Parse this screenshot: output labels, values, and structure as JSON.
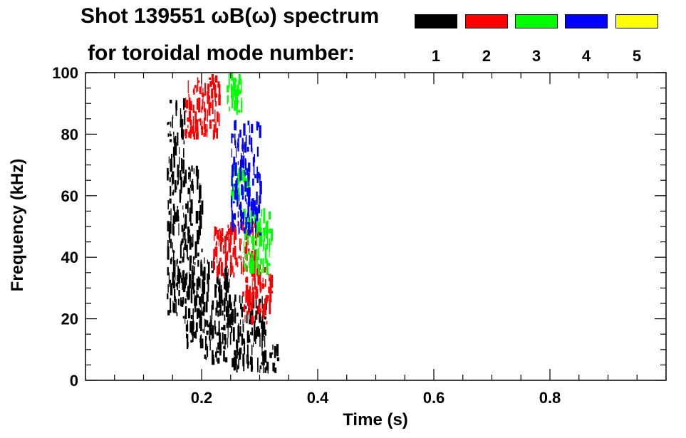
{
  "title": {
    "line1": "Shot 139551 ωB(ω) spectrum",
    "line2": "for toroidal mode number:"
  },
  "legend": [
    {
      "mode": "1",
      "color": "#000000"
    },
    {
      "mode": "2",
      "color": "#ff0000"
    },
    {
      "mode": "3",
      "color": "#00ff00"
    },
    {
      "mode": "4",
      "color": "#0000ff"
    },
    {
      "mode": "5",
      "color": "#ffff00"
    }
  ],
  "chart_data": {
    "type": "heatmap",
    "title": "Shot 139551 ωB(ω) spectrum",
    "xlabel": "Time (s)",
    "ylabel": "Frequency (kHz)",
    "xlim": [
      0.0,
      1.0
    ],
    "ylim": [
      0,
      100
    ],
    "xticks": [
      "0.2",
      "0.4",
      "0.6",
      "0.8"
    ],
    "yticks": [
      "0",
      "20",
      "40",
      "60",
      "80",
      "100"
    ],
    "series": [
      {
        "name": "1",
        "color": "#000000",
        "regions": [
          {
            "t": [
              0.14,
              0.17
            ],
            "f": [
              20,
              92
            ]
          },
          {
            "t": [
              0.17,
              0.2
            ],
            "f": [
              10,
              70
            ]
          },
          {
            "t": [
              0.2,
              0.25
            ],
            "f": [
              5,
              40
            ]
          },
          {
            "t": [
              0.25,
              0.31
            ],
            "f": [
              2,
              28
            ]
          },
          {
            "t": [
              0.31,
              0.33
            ],
            "f": [
              2,
              12
            ]
          }
        ]
      },
      {
        "name": "2",
        "color": "#ff0000",
        "regions": [
          {
            "t": [
              0.17,
              0.23
            ],
            "f": [
              78,
              100
            ]
          },
          {
            "t": [
              0.22,
              0.3
            ],
            "f": [
              33,
              52
            ]
          },
          {
            "t": [
              0.27,
              0.32
            ],
            "f": [
              18,
              38
            ]
          }
        ]
      },
      {
        "name": "3",
        "color": "#00ff00",
        "regions": [
          {
            "t": [
              0.24,
              0.27
            ],
            "f": [
              85,
              100
            ]
          },
          {
            "t": [
              0.25,
              0.28
            ],
            "f": [
              58,
              72
            ]
          },
          {
            "t": [
              0.27,
              0.32
            ],
            "f": [
              34,
              56
            ]
          }
        ]
      },
      {
        "name": "4",
        "color": "#0000ff",
        "regions": [
          {
            "t": [
              0.25,
              0.3
            ],
            "f": [
              47,
              85
            ]
          }
        ]
      },
      {
        "name": "5",
        "color": "#ffff00",
        "regions": []
      }
    ]
  }
}
